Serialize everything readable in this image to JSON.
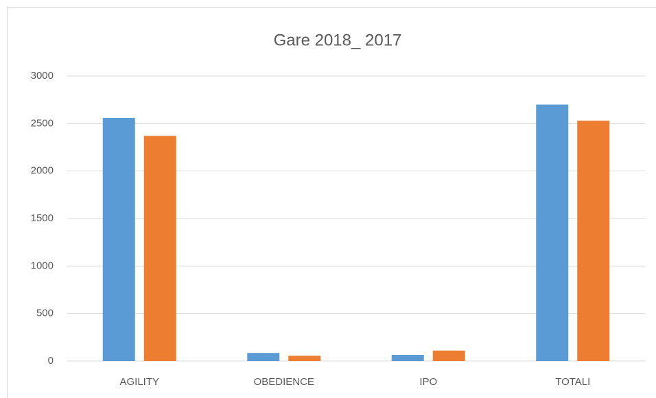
{
  "chart_data": {
    "type": "bar",
    "title": "Gare 2018_ 2017",
    "categories": [
      "AGILITY",
      "OBEDIENCE",
      "IPO",
      "TOTALI"
    ],
    "series": [
      {
        "color": "#5b9bd5",
        "values": [
          2560,
          85,
          65,
          2700
        ]
      },
      {
        "color": "#ed7d31",
        "values": [
          2370,
          55,
          110,
          2530
        ]
      }
    ],
    "ylim": [
      0,
      3000
    ],
    "yticks": [
      0,
      500,
      1000,
      1500,
      2000,
      2500,
      3000
    ],
    "grid": true
  }
}
